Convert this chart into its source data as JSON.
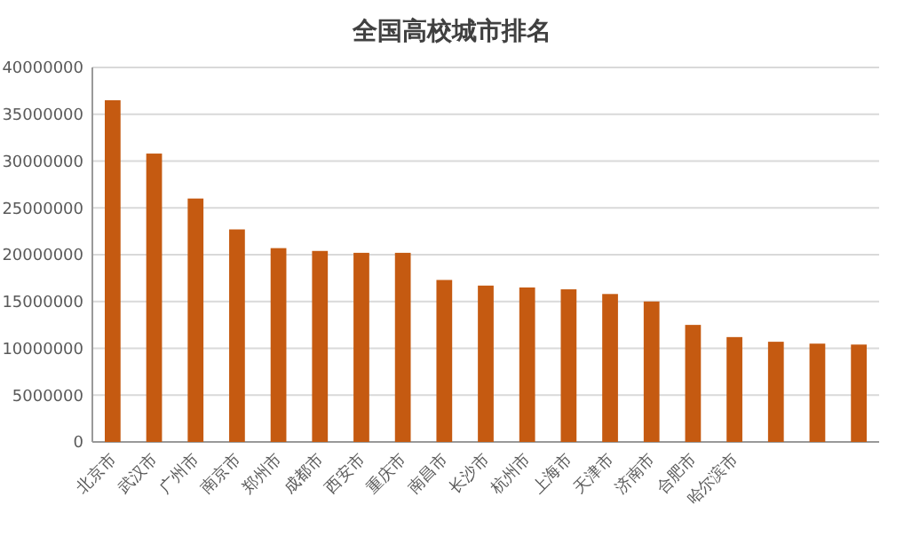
{
  "chart_data": {
    "type": "bar",
    "title": "全国高校城市排名",
    "categories": [
      "北京市",
      "武汉市",
      "广州市",
      "南京市",
      "郑州市",
      "成都市",
      "西安市",
      "重庆市",
      "南昌市",
      "长沙市",
      "杭州市",
      "上海市",
      "天津市",
      "济南市",
      "合肥市",
      "哈尔滨市",
      null,
      null,
      null
    ],
    "values": [
      36500000,
      30800000,
      26000000,
      22700000,
      20700000,
      20400000,
      20200000,
      20200000,
      17300000,
      16700000,
      16500000,
      16300000,
      15800000,
      15000000,
      12500000,
      11200000,
      10700000,
      10500000,
      10400000
    ],
    "color": "#c55a11",
    "ylim": [
      0,
      40000000
    ],
    "yticks": [
      0,
      5000000,
      10000000,
      15000000,
      20000000,
      25000000,
      30000000,
      35000000,
      40000000
    ],
    "grid": "y"
  }
}
